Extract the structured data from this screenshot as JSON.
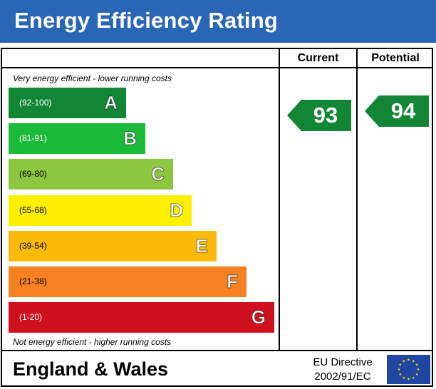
{
  "header": {
    "title": "Energy Efficiency Rating",
    "bg_color": "#2a66b6"
  },
  "columns": {
    "current": "Current",
    "potential": "Potential"
  },
  "notes": {
    "top": "Very energy efficient - lower running costs",
    "bottom": "Not energy efficient - higher running costs"
  },
  "chart_data": {
    "type": "bar",
    "categories": [
      "A",
      "B",
      "C",
      "D",
      "E",
      "F",
      "G"
    ],
    "ranges": [
      "(92-100)",
      "(81-91)",
      "(69-80)",
      "(55-68)",
      "(39-54)",
      "(21-38)",
      "(1-20)"
    ],
    "colors": [
      "#138636",
      "#1bba3a",
      "#8dc63f",
      "#ffef00",
      "#fbba09",
      "#f58120",
      "#d1101f"
    ],
    "current": {
      "value": "93",
      "band": "A"
    },
    "potential": {
      "value": "94",
      "band": "A"
    }
  },
  "footer": {
    "region": "England & Wales",
    "directive_line1": "EU Directive",
    "directive_line2": "2002/91/EC",
    "flag_icon": "eu-flag-icon"
  }
}
